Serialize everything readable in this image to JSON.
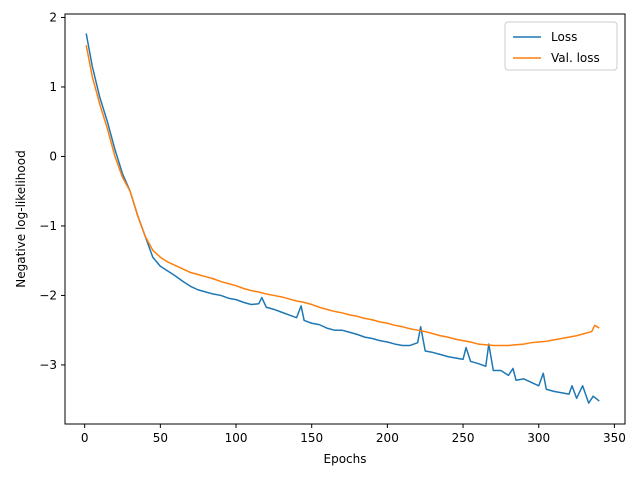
{
  "chart_data": {
    "type": "line",
    "xlabel": "Epochs",
    "ylabel": "Negative log-likelihood",
    "xlim": [
      -13,
      357
    ],
    "ylim": [
      -3.85,
      2.05
    ],
    "xticks": [
      0,
      50,
      100,
      150,
      200,
      250,
      300,
      350
    ],
    "yticks": [
      -3,
      -2,
      -1,
      0,
      1,
      2
    ],
    "ytick_labels": [
      "−3",
      "−2",
      "−1",
      "0",
      "1",
      "2"
    ],
    "grid": false,
    "legend": {
      "position": "top-right"
    },
    "series": [
      {
        "name": "Loss",
        "color": "#1f77b4",
        "x": [
          1,
          5,
          10,
          15,
          20,
          25,
          30,
          35,
          40,
          45,
          50,
          55,
          60,
          65,
          70,
          75,
          80,
          85,
          90,
          95,
          100,
          105,
          110,
          115,
          117,
          120,
          125,
          130,
          135,
          140,
          143,
          145,
          150,
          155,
          160,
          165,
          170,
          175,
          180,
          185,
          190,
          195,
          200,
          205,
          210,
          215,
          220,
          222,
          225,
          230,
          235,
          240,
          245,
          250,
          252,
          255,
          260,
          265,
          267,
          270,
          275,
          280,
          283,
          285,
          290,
          295,
          300,
          303,
          305,
          310,
          315,
          320,
          322,
          325,
          329,
          333,
          336,
          340
        ],
        "y": [
          1.77,
          1.3,
          0.85,
          0.5,
          0.1,
          -0.25,
          -0.5,
          -0.85,
          -1.15,
          -1.45,
          -1.58,
          -1.65,
          -1.72,
          -1.8,
          -1.87,
          -1.92,
          -1.95,
          -1.98,
          -2.0,
          -2.04,
          -2.06,
          -2.1,
          -2.13,
          -2.12,
          -2.03,
          -2.17,
          -2.2,
          -2.24,
          -2.28,
          -2.32,
          -2.15,
          -2.36,
          -2.4,
          -2.42,
          -2.47,
          -2.5,
          -2.5,
          -2.53,
          -2.56,
          -2.6,
          -2.62,
          -2.65,
          -2.67,
          -2.7,
          -2.72,
          -2.72,
          -2.68,
          -2.45,
          -2.8,
          -2.82,
          -2.85,
          -2.88,
          -2.9,
          -2.92,
          -2.75,
          -2.95,
          -2.98,
          -3.02,
          -2.7,
          -3.08,
          -3.08,
          -3.15,
          -3.05,
          -3.22,
          -3.2,
          -3.25,
          -3.3,
          -3.12,
          -3.35,
          -3.38,
          -3.4,
          -3.42,
          -3.3,
          -3.48,
          -3.3,
          -3.55,
          -3.45,
          -3.52
        ]
      },
      {
        "name": "Val. loss",
        "color": "#ff7f0e",
        "x": [
          1,
          5,
          10,
          15,
          20,
          25,
          30,
          35,
          40,
          45,
          50,
          55,
          60,
          65,
          70,
          75,
          80,
          85,
          90,
          95,
          100,
          105,
          110,
          115,
          120,
          125,
          130,
          135,
          140,
          145,
          150,
          155,
          160,
          165,
          170,
          175,
          180,
          185,
          190,
          195,
          200,
          205,
          210,
          215,
          220,
          225,
          230,
          235,
          240,
          245,
          250,
          255,
          260,
          265,
          270,
          275,
          280,
          285,
          290,
          295,
          300,
          305,
          310,
          315,
          320,
          325,
          330,
          335,
          337,
          340
        ],
        "y": [
          1.6,
          1.15,
          0.75,
          0.4,
          0.0,
          -0.3,
          -0.5,
          -0.85,
          -1.15,
          -1.35,
          -1.45,
          -1.52,
          -1.57,
          -1.62,
          -1.67,
          -1.7,
          -1.73,
          -1.76,
          -1.8,
          -1.83,
          -1.86,
          -1.9,
          -1.93,
          -1.95,
          -1.98,
          -2.0,
          -2.02,
          -2.05,
          -2.08,
          -2.1,
          -2.13,
          -2.17,
          -2.2,
          -2.23,
          -2.25,
          -2.28,
          -2.3,
          -2.33,
          -2.35,
          -2.38,
          -2.4,
          -2.43,
          -2.45,
          -2.48,
          -2.5,
          -2.52,
          -2.55,
          -2.58,
          -2.6,
          -2.63,
          -2.65,
          -2.67,
          -2.7,
          -2.71,
          -2.72,
          -2.72,
          -2.72,
          -2.71,
          -2.7,
          -2.68,
          -2.67,
          -2.66,
          -2.64,
          -2.62,
          -2.6,
          -2.58,
          -2.55,
          -2.52,
          -2.43,
          -2.47
        ]
      }
    ]
  }
}
